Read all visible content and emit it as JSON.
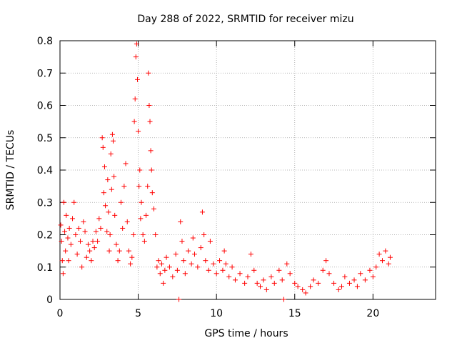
{
  "chart_data": {
    "type": "scatter",
    "title": "Day 288 of 2022, SRMTID for receiver mizu",
    "xlabel": "GPS time / hours",
    "ylabel": "SRMTID / TECUs",
    "xlim": [
      0,
      24
    ],
    "ylim": [
      0,
      0.8
    ],
    "x_ticks": [
      0,
      5,
      10,
      15,
      20
    ],
    "y_ticks": [
      0,
      0.1,
      0.2,
      0.3,
      0.4,
      0.5,
      0.6,
      0.7,
      0.8
    ],
    "x_tick_labels": [
      "0",
      "5",
      "10",
      "15",
      "20"
    ],
    "y_tick_labels": [
      "0",
      "0.1",
      "0.2",
      "0.3",
      "0.4",
      "0.5",
      "0.6",
      "0.7",
      "0.8"
    ],
    "grid": true,
    "marker": "+",
    "color": "#ff0000",
    "series": [
      {
        "name": "SRMTID",
        "points": [
          [
            0.05,
            0.23
          ],
          [
            0.1,
            0.18
          ],
          [
            0.15,
            0.12
          ],
          [
            0.2,
            0.08
          ],
          [
            0.25,
            0.3
          ],
          [
            0.3,
            0.21
          ],
          [
            0.35,
            0.15
          ],
          [
            0.4,
            0.26
          ],
          [
            0.5,
            0.19
          ],
          [
            0.55,
            0.12
          ],
          [
            0.6,
            0.22
          ],
          [
            0.7,
            0.17
          ],
          [
            0.8,
            0.25
          ],
          [
            0.9,
            0.3
          ],
          [
            1.0,
            0.2
          ],
          [
            1.1,
            0.14
          ],
          [
            1.2,
            0.22
          ],
          [
            1.3,
            0.18
          ],
          [
            1.4,
            0.1
          ],
          [
            1.5,
            0.24
          ],
          [
            1.6,
            0.21
          ],
          [
            1.7,
            0.13
          ],
          [
            1.8,
            0.17
          ],
          [
            1.9,
            0.15
          ],
          [
            2.0,
            0.12
          ],
          [
            2.1,
            0.18
          ],
          [
            2.2,
            0.16
          ],
          [
            2.3,
            0.21
          ],
          [
            2.4,
            0.18
          ],
          [
            2.5,
            0.25
          ],
          [
            2.6,
            0.22
          ],
          [
            2.7,
            0.5
          ],
          [
            2.75,
            0.47
          ],
          [
            2.8,
            0.33
          ],
          [
            2.85,
            0.41
          ],
          [
            2.9,
            0.29
          ],
          [
            3.0,
            0.21
          ],
          [
            3.05,
            0.37
          ],
          [
            3.1,
            0.27
          ],
          [
            3.15,
            0.15
          ],
          [
            3.2,
            0.2
          ],
          [
            3.25,
            0.45
          ],
          [
            3.3,
            0.34
          ],
          [
            3.35,
            0.51
          ],
          [
            3.4,
            0.49
          ],
          [
            3.45,
            0.38
          ],
          [
            3.5,
            0.26
          ],
          [
            3.6,
            0.17
          ],
          [
            3.7,
            0.12
          ],
          [
            3.8,
            0.15
          ],
          [
            3.9,
            0.3
          ],
          [
            4.0,
            0.22
          ],
          [
            4.1,
            0.35
          ],
          [
            4.2,
            0.42
          ],
          [
            4.3,
            0.24
          ],
          [
            4.4,
            0.15
          ],
          [
            4.5,
            0.11
          ],
          [
            4.6,
            0.13
          ],
          [
            4.7,
            0.2
          ],
          [
            4.75,
            0.55
          ],
          [
            4.8,
            0.62
          ],
          [
            4.85,
            0.75
          ],
          [
            4.9,
            0.79
          ],
          [
            4.95,
            0.68
          ],
          [
            5.0,
            0.52
          ],
          [
            5.05,
            0.35
          ],
          [
            5.1,
            0.4
          ],
          [
            5.15,
            0.25
          ],
          [
            5.2,
            0.3
          ],
          [
            5.3,
            0.2
          ],
          [
            5.4,
            0.18
          ],
          [
            5.5,
            0.26
          ],
          [
            5.6,
            0.35
          ],
          [
            5.65,
            0.7
          ],
          [
            5.7,
            0.6
          ],
          [
            5.75,
            0.55
          ],
          [
            5.8,
            0.46
          ],
          [
            5.85,
            0.4
          ],
          [
            5.9,
            0.33
          ],
          [
            6.0,
            0.28
          ],
          [
            6.1,
            0.2
          ],
          [
            6.2,
            0.1
          ],
          [
            6.3,
            0.12
          ],
          [
            6.4,
            0.08
          ],
          [
            6.5,
            0.11
          ],
          [
            6.6,
            0.05
          ],
          [
            6.7,
            0.09
          ],
          [
            6.8,
            0.13
          ],
          [
            7.0,
            0.1
          ],
          [
            7.2,
            0.07
          ],
          [
            7.4,
            0.14
          ],
          [
            7.5,
            0.09
          ],
          [
            7.6,
            0.0
          ],
          [
            7.7,
            0.24
          ],
          [
            7.8,
            0.18
          ],
          [
            7.9,
            0.12
          ],
          [
            8.0,
            0.08
          ],
          [
            8.2,
            0.15
          ],
          [
            8.4,
            0.11
          ],
          [
            8.5,
            0.19
          ],
          [
            8.6,
            0.14
          ],
          [
            8.8,
            0.1
          ],
          [
            9.0,
            0.16
          ],
          [
            9.1,
            0.27
          ],
          [
            9.2,
            0.2
          ],
          [
            9.3,
            0.12
          ],
          [
            9.5,
            0.09
          ],
          [
            9.6,
            0.18
          ],
          [
            9.8,
            0.11
          ],
          [
            10.0,
            0.08
          ],
          [
            10.2,
            0.12
          ],
          [
            10.4,
            0.09
          ],
          [
            10.5,
            0.15
          ],
          [
            10.6,
            0.11
          ],
          [
            10.8,
            0.07
          ],
          [
            11.0,
            0.1
          ],
          [
            11.2,
            0.06
          ],
          [
            11.5,
            0.08
          ],
          [
            11.8,
            0.05
          ],
          [
            12.0,
            0.07
          ],
          [
            12.2,
            0.14
          ],
          [
            12.4,
            0.09
          ],
          [
            12.6,
            0.05
          ],
          [
            12.8,
            0.04
          ],
          [
            13.0,
            0.06
          ],
          [
            13.2,
            0.03
          ],
          [
            13.5,
            0.07
          ],
          [
            13.7,
            0.05
          ],
          [
            14.0,
            0.09
          ],
          [
            14.2,
            0.06
          ],
          [
            14.3,
            0.0
          ],
          [
            14.5,
            0.11
          ],
          [
            14.7,
            0.08
          ],
          [
            15.0,
            0.05
          ],
          [
            15.2,
            0.04
          ],
          [
            15.5,
            0.03
          ],
          [
            15.7,
            0.02
          ],
          [
            16.0,
            0.04
          ],
          [
            16.2,
            0.06
          ],
          [
            16.5,
            0.05
          ],
          [
            16.8,
            0.09
          ],
          [
            17.0,
            0.12
          ],
          [
            17.2,
            0.08
          ],
          [
            17.5,
            0.05
          ],
          [
            17.8,
            0.03
          ],
          [
            18.0,
            0.04
          ],
          [
            18.2,
            0.07
          ],
          [
            18.5,
            0.05
          ],
          [
            18.8,
            0.06
          ],
          [
            19.0,
            0.04
          ],
          [
            19.2,
            0.08
          ],
          [
            19.5,
            0.06
          ],
          [
            19.8,
            0.09
          ],
          [
            20.0,
            0.07
          ],
          [
            20.2,
            0.1
          ],
          [
            20.4,
            0.14
          ],
          [
            20.6,
            0.12
          ],
          [
            20.8,
            0.15
          ],
          [
            21.0,
            0.11
          ],
          [
            21.1,
            0.13
          ]
        ]
      }
    ]
  }
}
